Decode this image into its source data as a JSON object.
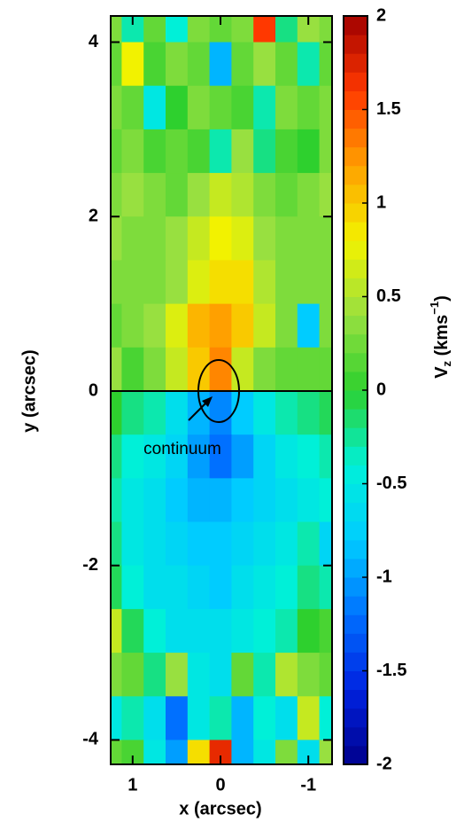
{
  "chart_data": {
    "type": "contour",
    "xlabel": "x (arcsec)",
    "ylabel": "y (arcsec)",
    "colorbar_label": [
      "V",
      "z",
      " (kms",
      "−1",
      ")"
    ],
    "annotation": "continuum",
    "x": [
      1.25,
      1.0,
      0.75,
      0.5,
      0.25,
      0.0,
      -0.25,
      -0.5,
      -0.75,
      -1.0,
      -1.25
    ],
    "y": [
      4.25,
      3.75,
      3.25,
      2.75,
      2.25,
      1.75,
      1.25,
      0.75,
      0.25,
      -0.25,
      -0.75,
      -1.25,
      -1.75,
      -2.25,
      -2.75,
      -3.25,
      -3.75,
      -4.25
    ],
    "z": [
      [
        0.3,
        -0.3,
        0.2,
        -0.4,
        0.3,
        0.2,
        0.3,
        1.6,
        -0.2,
        0.4,
        0.3
      ],
      [
        0.2,
        0.8,
        0.1,
        0.3,
        0.2,
        -0.9,
        0.2,
        0.4,
        0.2,
        -0.3,
        0.2
      ],
      [
        0.3,
        0.2,
        -0.5,
        0.0,
        0.3,
        0.2,
        0.1,
        -0.3,
        0.3,
        0.2,
        0.3
      ],
      [
        0.2,
        0.3,
        0.1,
        0.2,
        0.1,
        -0.3,
        0.4,
        -0.2,
        0.1,
        0.0,
        0.3
      ],
      [
        0.3,
        0.4,
        0.3,
        0.2,
        0.4,
        0.6,
        0.5,
        0.3,
        0.2,
        0.3,
        0.4
      ],
      [
        0.4,
        0.3,
        0.3,
        0.4,
        0.6,
        0.8,
        0.7,
        0.4,
        0.3,
        0.3,
        0.3
      ],
      [
        0.3,
        0.3,
        0.3,
        0.4,
        0.7,
        0.9,
        0.9,
        0.5,
        0.3,
        0.3,
        0.3
      ],
      [
        0.2,
        0.3,
        0.4,
        0.7,
        1.1,
        1.2,
        1.0,
        0.6,
        0.3,
        -0.8,
        0.3
      ],
      [
        0.4,
        0.1,
        0.3,
        0.6,
        1.0,
        1.3,
        0.6,
        0.3,
        0.2,
        0.2,
        0.2
      ],
      [
        0.0,
        -0.2,
        -0.3,
        -0.6,
        -0.9,
        -1.1,
        -0.8,
        -0.5,
        -0.3,
        -0.2,
        -0.1
      ],
      [
        -0.2,
        -0.4,
        -0.5,
        -0.7,
        -1.0,
        -1.2,
        -1.0,
        -0.7,
        -0.5,
        -0.4,
        -0.3
      ],
      [
        -0.3,
        -0.5,
        -0.6,
        -0.8,
        -0.9,
        -0.9,
        -0.8,
        -0.7,
        -0.6,
        -0.5,
        -0.4
      ],
      [
        -0.2,
        -0.5,
        -0.6,
        -0.7,
        -0.8,
        -0.8,
        -0.7,
        -0.6,
        -0.5,
        -0.3,
        -0.7
      ],
      [
        -0.1,
        -0.4,
        -0.6,
        -0.6,
        -0.7,
        -0.8,
        -0.6,
        -0.5,
        -0.4,
        -0.2,
        -0.3
      ],
      [
        0.6,
        -0.1,
        -0.4,
        -0.6,
        -0.6,
        -0.6,
        -0.5,
        -0.4,
        -0.3,
        0.0,
        0.1
      ],
      [
        0.3,
        0.2,
        -0.2,
        0.4,
        -0.5,
        -0.6,
        0.2,
        -0.3,
        0.5,
        0.3,
        0.2
      ],
      [
        -0.5,
        -0.3,
        -0.6,
        -1.2,
        -0.5,
        -0.3,
        -0.9,
        -0.4,
        -0.6,
        0.6,
        -0.4
      ],
      [
        0.2,
        0.1,
        -0.5,
        -1.0,
        0.9,
        1.7,
        -0.9,
        -0.5,
        0.3,
        -0.6,
        0.4
      ]
    ],
    "xlim": [
      1.25,
      -1.27
    ],
    "ylim": [
      -4.28,
      4.3
    ],
    "xticks": [
      1,
      0,
      -1
    ],
    "yticks": [
      -4,
      -2,
      0,
      2,
      4
    ],
    "zlim": [
      -2,
      2
    ],
    "zticks": [
      -2,
      -1.5,
      -1,
      -0.5,
      0,
      0.5,
      1,
      1.5,
      2
    ],
    "colormap": [
      "#00008b",
      "#0022e0",
      "#0070ff",
      "#00ccff",
      "#00f0d8",
      "#2ed02e",
      "#98e040",
      "#f2f200",
      "#ffa000",
      "#ff3800",
      "#a00000"
    ]
  }
}
